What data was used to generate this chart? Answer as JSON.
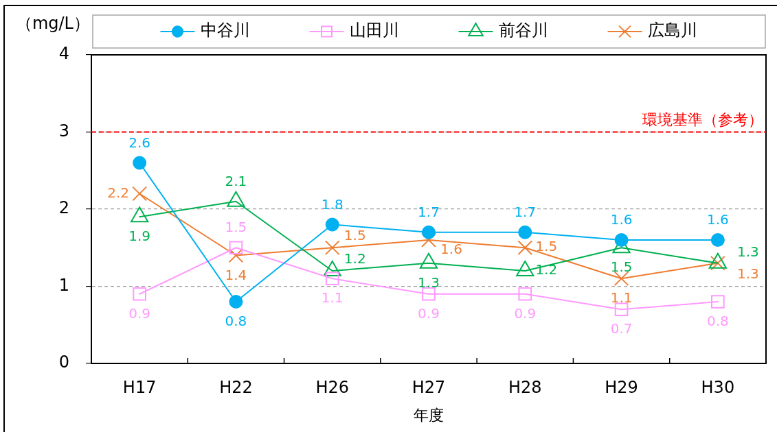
{
  "chart_data": {
    "type": "line",
    "xlabel": "年度",
    "ylabel": "（mg/L）",
    "categories": [
      "H17",
      "H22",
      "H26",
      "H27",
      "H28",
      "H29",
      "H30"
    ],
    "series": [
      {
        "name": "中谷川",
        "color": "#00b0f0",
        "marker": "circle",
        "values": [
          2.6,
          0.8,
          1.8,
          1.7,
          1.7,
          1.6,
          1.6
        ]
      },
      {
        "name": "山田川",
        "color": "#ff99ff",
        "marker": "square",
        "values": [
          0.9,
          1.5,
          1.1,
          0.9,
          0.9,
          0.7,
          0.8
        ]
      },
      {
        "name": "前谷川",
        "color": "#00b050",
        "marker": "triangle",
        "values": [
          1.9,
          2.1,
          1.2,
          1.3,
          1.2,
          1.5,
          1.3
        ]
      },
      {
        "name": "広島川",
        "color": "#ed7d31",
        "marker": "cross",
        "values": [
          2.2,
          1.4,
          1.5,
          1.6,
          1.5,
          1.1,
          1.3
        ]
      }
    ],
    "ylim": [
      0,
      4
    ],
    "yticks": [
      0,
      1,
      2,
      3,
      4
    ],
    "grid": "y",
    "legend": "top",
    "data_labels": true,
    "ref_lines": [
      {
        "axis": "y",
        "value": 3,
        "label": "環境基準（参考）",
        "color": "#ff0000",
        "line_style": "dashed"
      }
    ]
  }
}
